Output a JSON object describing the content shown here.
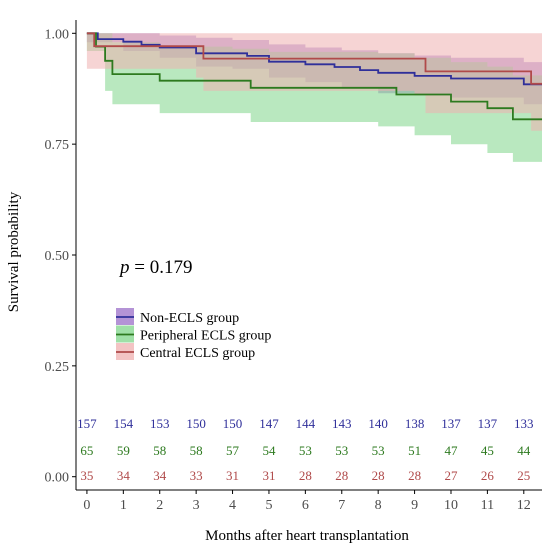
{
  "chart_data": {
    "type": "line",
    "subtype": "kaplan-meier",
    "title": "",
    "xlabel": "Months after heart transplantation",
    "ylabel": "Survival probability",
    "xlim": [
      -0.3,
      12.5
    ],
    "ylim": [
      -0.03,
      1.03
    ],
    "xticks": [
      0,
      1,
      2,
      3,
      4,
      5,
      6,
      7,
      8,
      9,
      10,
      11,
      12
    ],
    "yticks": [
      0.0,
      0.25,
      0.5,
      0.75,
      1.0
    ],
    "ytick_labels": [
      "0.00",
      "0.25",
      "0.50",
      "0.75",
      "1.00"
    ],
    "grid": false,
    "legend_position": "middle-left",
    "p_value": {
      "prefix": "p",
      "text": " = 0.179"
    },
    "series": [
      {
        "name": "Non-ECLS group",
        "color": "#2f2f9a",
        "fill": "#9b6fc8",
        "steps": [
          [
            0,
            1.0
          ],
          [
            0.3,
            0.987
          ],
          [
            1.0,
            0.981
          ],
          [
            1.5,
            0.974
          ],
          [
            2.0,
            0.968
          ],
          [
            3.0,
            0.955
          ],
          [
            4.0,
            0.955
          ],
          [
            4.4,
            0.949
          ],
          [
            5.0,
            0.936
          ],
          [
            6.0,
            0.93
          ],
          [
            6.8,
            0.924
          ],
          [
            7.5,
            0.917
          ],
          [
            8.0,
            0.911
          ],
          [
            9.0,
            0.904
          ],
          [
            10.0,
            0.898
          ],
          [
            11.0,
            0.898
          ],
          [
            12.0,
            0.885
          ],
          [
            12.5,
            0.885
          ]
        ],
        "ci_upper": [
          [
            0,
            1.0
          ],
          [
            1.0,
            1.0
          ],
          [
            2.0,
            0.995
          ],
          [
            3.0,
            0.99
          ],
          [
            4.0,
            0.985
          ],
          [
            5.0,
            0.975
          ],
          [
            6.0,
            0.968
          ],
          [
            7.0,
            0.962
          ],
          [
            8.0,
            0.955
          ],
          [
            9.0,
            0.95
          ],
          [
            10.0,
            0.945
          ],
          [
            11.0,
            0.945
          ],
          [
            12.0,
            0.935
          ],
          [
            12.5,
            0.935
          ]
        ],
        "ci_lower": [
          [
            0,
            0.98
          ],
          [
            1.0,
            0.96
          ],
          [
            2.0,
            0.945
          ],
          [
            3.0,
            0.925
          ],
          [
            4.0,
            0.92
          ],
          [
            5.0,
            0.9
          ],
          [
            6.0,
            0.89
          ],
          [
            7.0,
            0.875
          ],
          [
            8.0,
            0.865
          ],
          [
            9.0,
            0.86
          ],
          [
            10.0,
            0.855
          ],
          [
            11.0,
            0.855
          ],
          [
            12.0,
            0.84
          ],
          [
            12.5,
            0.84
          ]
        ],
        "at_risk": [
          157,
          154,
          153,
          150,
          150,
          147,
          144,
          143,
          140,
          138,
          137,
          137,
          133
        ]
      },
      {
        "name": "Peripheral ECLS group",
        "color": "#2d7a1f",
        "fill": "#7fd68a",
        "steps": [
          [
            0,
            1.0
          ],
          [
            0.25,
            0.97
          ],
          [
            0.5,
            0.938
          ],
          [
            0.7,
            0.908
          ],
          [
            2.0,
            0.893
          ],
          [
            4.0,
            0.893
          ],
          [
            4.5,
            0.877
          ],
          [
            8.0,
            0.877
          ],
          [
            8.5,
            0.862
          ],
          [
            10.0,
            0.846
          ],
          [
            11.0,
            0.831
          ],
          [
            11.7,
            0.806
          ],
          [
            12.5,
            0.806
          ]
        ],
        "ci_upper": [
          [
            0,
            1.0
          ],
          [
            0.7,
            0.98
          ],
          [
            2.0,
            0.97
          ],
          [
            4.0,
            0.965
          ],
          [
            5.0,
            0.958
          ],
          [
            8.0,
            0.955
          ],
          [
            9.0,
            0.945
          ],
          [
            10.0,
            0.935
          ],
          [
            11.0,
            0.925
          ],
          [
            11.7,
            0.905
          ],
          [
            12.5,
            0.905
          ]
        ],
        "ci_lower": [
          [
            0,
            0.96
          ],
          [
            0.5,
            0.87
          ],
          [
            0.7,
            0.84
          ],
          [
            2.0,
            0.82
          ],
          [
            4.5,
            0.8
          ],
          [
            8.0,
            0.79
          ],
          [
            9.0,
            0.77
          ],
          [
            10.0,
            0.75
          ],
          [
            11.0,
            0.73
          ],
          [
            11.7,
            0.71
          ],
          [
            12.5,
            0.71
          ]
        ],
        "at_risk": [
          65,
          59,
          58,
          58,
          57,
          54,
          53,
          53,
          53,
          51,
          47,
          45,
          44
        ]
      },
      {
        "name": "Central ECLS group",
        "color": "#b04a4a",
        "fill": "#efb0b0",
        "steps": [
          [
            0,
            1.0
          ],
          [
            0.2,
            0.971
          ],
          [
            3.0,
            0.971
          ],
          [
            3.2,
            0.943
          ],
          [
            9.0,
            0.943
          ],
          [
            9.3,
            0.914
          ],
          [
            12.0,
            0.914
          ],
          [
            12.2,
            0.886
          ],
          [
            12.5,
            0.886
          ]
        ],
        "ci_upper": [
          [
            0,
            1.0
          ],
          [
            12.5,
            1.0
          ]
        ],
        "ci_lower": [
          [
            0,
            0.92
          ],
          [
            0.2,
            0.92
          ],
          [
            3.0,
            0.9
          ],
          [
            3.2,
            0.87
          ],
          [
            9.0,
            0.86
          ],
          [
            9.3,
            0.82
          ],
          [
            12.0,
            0.82
          ],
          [
            12.2,
            0.78
          ],
          [
            12.5,
            0.78
          ]
        ],
        "at_risk": [
          35,
          34,
          34,
          33,
          31,
          31,
          28,
          28,
          28,
          28,
          27,
          26,
          25
        ]
      }
    ]
  }
}
